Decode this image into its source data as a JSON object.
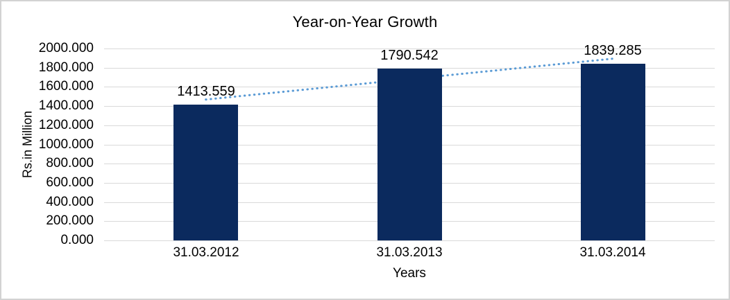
{
  "chart_data": {
    "type": "bar",
    "title": "Year-on-Year Growth",
    "xlabel": "Years",
    "ylabel": "Rs.in Million",
    "categories": [
      "31.03.2012",
      "31.03.2013",
      "31.03.2014"
    ],
    "values": [
      1413.559,
      1790.542,
      1839.285
    ],
    "data_labels": [
      "1413.559",
      "1790.542",
      "1839.285"
    ],
    "series_name": "Year-on-Year Growth",
    "ylim": [
      0,
      2000
    ],
    "ytick_step": 200,
    "ytick_labels": [
      "0.000",
      "200.000",
      "400.000",
      "600.000",
      "800.000",
      "1000.000",
      "1200.000",
      "1400.000",
      "1600.000",
      "1800.000",
      "2000.000"
    ],
    "grid": "horizontal",
    "legend": "none",
    "trendline": {
      "type": "linear",
      "style": "dotted"
    },
    "colors": {
      "bar": "#0b2a5e",
      "trendline": "#5b9bd5",
      "gridline": "#d9d9d9",
      "text": "#000000",
      "border": "#d2d2d2",
      "background": "#ffffff"
    }
  }
}
